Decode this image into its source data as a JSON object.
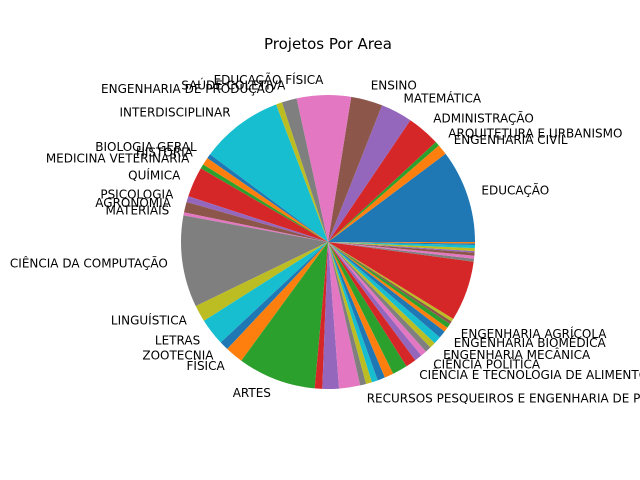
{
  "chart_data": {
    "type": "pie",
    "title": "Projetos Por Area",
    "start_angle_deg": 0,
    "direction": "counterclockwise",
    "slices": [
      {
        "label": "EDUCAÇÃO",
        "value": 62,
        "color": "#1f77b4"
      },
      {
        "label": "ENGENHARIA CIVIL",
        "value": 7,
        "color": "#ff7f0e"
      },
      {
        "label": "ARQUITETURA E URBANISMO",
        "value": 3,
        "color": "#2ca02c"
      },
      {
        "label": "ADMINISTRAÇÃO",
        "value": 22,
        "color": "#d62728"
      },
      {
        "label": "MATEMÁTICA",
        "value": 21,
        "color": "#9467bd"
      },
      {
        "label": "ENSINO",
        "value": 21,
        "color": "#8c564b"
      },
      {
        "label": "EDUCAÇÃO FÍSICA",
        "value": 36,
        "color": "#e377c2"
      },
      {
        "label": "SAÚDE COLETIVA",
        "value": 10,
        "color": "#7f7f7f"
      },
      {
        "label": "ENGENHARIA DE PRODUÇÃO",
        "value": 4,
        "color": "#bcbd22"
      },
      {
        "label": "INTERDISCIPLINAR",
        "value": 55,
        "color": "#17becf"
      },
      {
        "label": "BIOLOGIA GERAL",
        "value": 3,
        "color": "#1f77b4"
      },
      {
        "label": "HISTÓRIA",
        "value": 5,
        "color": "#ff7f0e"
      },
      {
        "label": "MEDICINA VETERINÁRIA",
        "value": 3,
        "color": "#2ca02c"
      },
      {
        "label": "QUÍMICA",
        "value": 20,
        "color": "#d62728"
      },
      {
        "label": "PSICOLOGIA",
        "value": 4,
        "color": "#9467bd"
      },
      {
        "label": "AGRONOMIA",
        "value": 7,
        "color": "#8c564b"
      },
      {
        "label": "MATERIAIS",
        "value": 2,
        "color": "#e377c2"
      },
      {
        "label": "CIÊNCIA DA COMPUTAÇÃO",
        "value": 61,
        "color": "#7f7f7f"
      },
      {
        "label": "LINGUÍSTICA",
        "value": 11,
        "color": "#bcbd22"
      },
      {
        "label": "LETRAS",
        "value": 18,
        "color": "#17becf"
      },
      {
        "label": "ZOOTECNIA",
        "value": 6,
        "color": "#1f77b4"
      },
      {
        "label": "FÍSICA",
        "value": 12,
        "color": "#ff7f0e"
      },
      {
        "label": "ARTES",
        "value": 52,
        "color": "#2ca02c"
      },
      {
        "label": "",
        "value": 5,
        "color": "#d62728"
      },
      {
        "label": "",
        "value": 11,
        "color": "#9467bd"
      },
      {
        "label": "",
        "value": 14,
        "color": "#e377c2"
      },
      {
        "label": "RECURSOS PESQUEIROS E ENGENHARIA DE PESCA",
        "value": 4,
        "color": "#7f7f7f"
      },
      {
        "label": "",
        "value": 4,
        "color": "#bcbd22"
      },
      {
        "label": "",
        "value": 4,
        "color": "#17becf"
      },
      {
        "label": "",
        "value": 5,
        "color": "#1f77b4"
      },
      {
        "label": "",
        "value": 6,
        "color": "#ff7f0e"
      },
      {
        "label": "",
        "value": 10,
        "color": "#2ca02c"
      },
      {
        "label": "CIÊNCIA E TECNOLOGIA DE ALIMENTOS",
        "value": 7,
        "color": "#d62728"
      },
      {
        "label": "",
        "value": 5,
        "color": "#9467bd"
      },
      {
        "label": "CIÊNCIA POLÍTICA",
        "value": 4,
        "color": "#e377c2"
      },
      {
        "label": "",
        "value": 4,
        "color": "#7f7f7f"
      },
      {
        "label": "ENGENHARIA MECÂNICA",
        "value": 4,
        "color": "#bcbd22"
      },
      {
        "label": "",
        "value": 5,
        "color": "#17becf"
      },
      {
        "label": "ENGENHARIA BIOMÉDICA",
        "value": 5,
        "color": "#1f77b4"
      },
      {
        "label": "",
        "value": 3,
        "color": "#ff7f0e"
      },
      {
        "label": "ENGENHARIA AGRÍCOLA",
        "value": 3,
        "color": "#2ca02c"
      },
      {
        "label": "",
        "value": 2,
        "color": "#8c564b"
      },
      {
        "label": "",
        "value": 2,
        "color": "#bcbd22"
      },
      {
        "label": "",
        "value": 40,
        "color": "#d62728"
      },
      {
        "label": "",
        "value": 2,
        "color": "#7f7f7f"
      },
      {
        "label": "",
        "value": 2,
        "color": "#e377c2"
      },
      {
        "label": "",
        "value": 2,
        "color": "#8c564b"
      },
      {
        "label": "",
        "value": 1,
        "color": "#9467bd"
      },
      {
        "label": "",
        "value": 2,
        "color": "#bcbd22"
      },
      {
        "label": "",
        "value": 2,
        "color": "#17becf"
      },
      {
        "label": "",
        "value": 1,
        "color": "#1f77b4"
      },
      {
        "label": "",
        "value": 1,
        "color": "#ff7f0e"
      }
    ]
  }
}
